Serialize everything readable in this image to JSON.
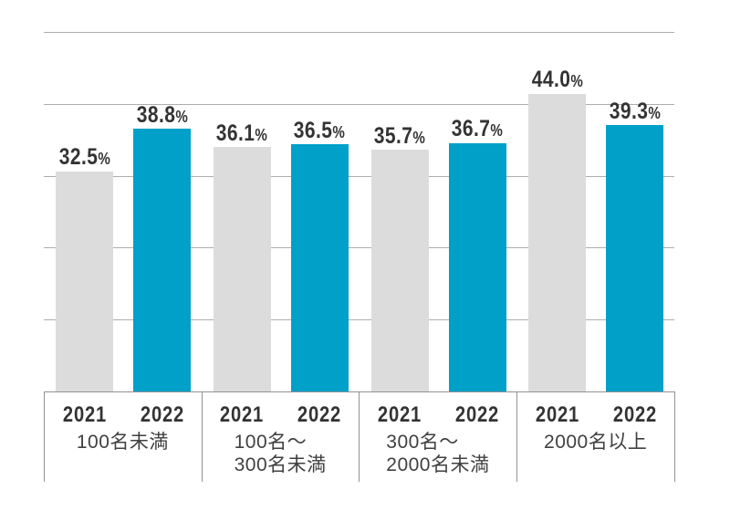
{
  "chart_data": {
    "type": "bar",
    "title": "",
    "xlabel": "",
    "ylabel": "",
    "value_suffix": "%",
    "categories": [
      "100名未満",
      "100名～300名未満",
      "300名～2000名未満",
      "2000名以上"
    ],
    "series": [
      {
        "name": "2021",
        "color": "#dcdcdc",
        "values": [
          32.5,
          36.1,
          35.7,
          44.0
        ]
      },
      {
        "name": "2022",
        "color": "#00a0c9",
        "values": [
          38.8,
          36.5,
          36.7,
          39.3
        ]
      }
    ],
    "value_labels_shown": true,
    "y_tick_labels_shown": false,
    "gridlines": {
      "horizontal_count": 6,
      "color": "#adadad"
    },
    "legend_position": "none",
    "x_tick_labels_per_bar": [
      "2021",
      "2022"
    ]
  },
  "category_labels": [
    [
      "100名未満"
    ],
    [
      "100名～",
      "300名未満"
    ],
    [
      "300名～",
      "2000名未満"
    ],
    [
      "2000名以上"
    ]
  ],
  "percent_symbol": "%",
  "colors": {
    "bar_2021": "#dcdcdc",
    "bar_2022": "#00a0c9",
    "text": "#333333",
    "axis_line": "#929292"
  }
}
